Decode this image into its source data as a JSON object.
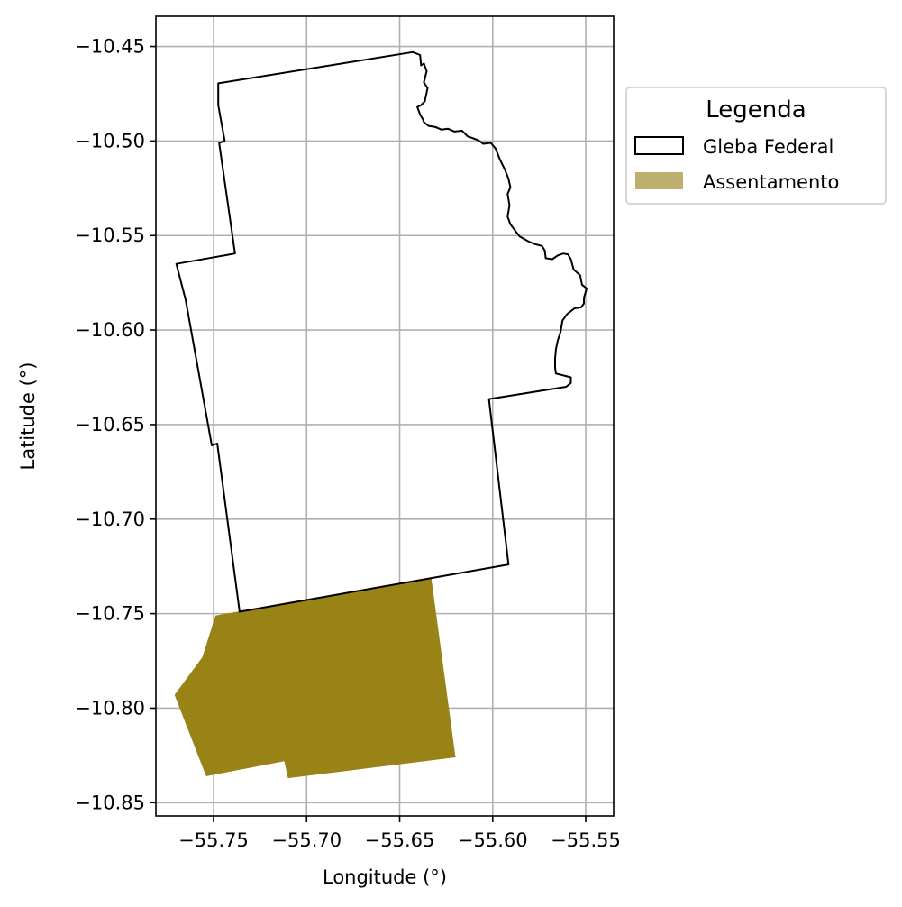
{
  "chart_data": {
    "type": "map",
    "xlabel": "Longitude (°)",
    "ylabel": "Latitude (°)",
    "xlim": [
      -55.781,
      -55.535
    ],
    "ylim": [
      -10.857,
      -10.434
    ],
    "grid": true,
    "x_ticks": [
      {
        "value": -55.75,
        "label": "−55.75"
      },
      {
        "value": -55.7,
        "label": "−55.70"
      },
      {
        "value": -55.65,
        "label": "−55.65"
      },
      {
        "value": -55.6,
        "label": "−55.60"
      },
      {
        "value": -55.55,
        "label": "−55.55"
      }
    ],
    "y_ticks": [
      {
        "value": -10.45,
        "label": "−10.45"
      },
      {
        "value": -10.5,
        "label": "−10.50"
      },
      {
        "value": -10.55,
        "label": "−10.55"
      },
      {
        "value": -10.6,
        "label": "−10.60"
      },
      {
        "value": -10.65,
        "label": "−10.65"
      },
      {
        "value": -10.7,
        "label": "−10.70"
      },
      {
        "value": -10.75,
        "label": "−10.75"
      },
      {
        "value": -10.8,
        "label": "−10.80"
      },
      {
        "value": -10.85,
        "label": "−10.85"
      }
    ],
    "legend": {
      "title": "Legenda",
      "placement": "outside-right",
      "entries": [
        {
          "label": "Gleba Federal",
          "fill": "#ffffff",
          "stroke": "#000000"
        },
        {
          "label": "Assentamento",
          "fill": "#bdb06f",
          "stroke": "none"
        }
      ]
    },
    "layers": [
      {
        "name": "Gleba Federal",
        "fill": "none",
        "stroke": "#000000",
        "coords": [
          [
            -55.7475,
            -10.4695
          ],
          [
            -55.643,
            -10.453
          ],
          [
            -55.639,
            -10.4545
          ],
          [
            -55.6385,
            -10.46
          ],
          [
            -55.637,
            -10.459
          ],
          [
            -55.6355,
            -10.463
          ],
          [
            -55.637,
            -10.469
          ],
          [
            -55.635,
            -10.472
          ],
          [
            -55.6365,
            -10.479
          ],
          [
            -55.6385,
            -10.481
          ],
          [
            -55.6405,
            -10.482
          ],
          [
            -55.639,
            -10.486
          ],
          [
            -55.6375,
            -10.4885
          ],
          [
            -55.637,
            -10.49
          ],
          [
            -55.6345,
            -10.492
          ],
          [
            -55.631,
            -10.4925
          ],
          [
            -55.6275,
            -10.494
          ],
          [
            -55.624,
            -10.4935
          ],
          [
            -55.6205,
            -10.495
          ],
          [
            -55.6165,
            -10.4945
          ],
          [
            -55.6135,
            -10.4975
          ],
          [
            -55.608,
            -10.4995
          ],
          [
            -55.605,
            -10.5015
          ],
          [
            -55.601,
            -10.501
          ],
          [
            -55.5985,
            -10.504
          ],
          [
            -55.596,
            -10.51
          ],
          [
            -55.5935,
            -10.515
          ],
          [
            -55.5915,
            -10.52
          ],
          [
            -55.5905,
            -10.5245
          ],
          [
            -55.592,
            -10.528
          ],
          [
            -55.591,
            -10.534
          ],
          [
            -55.592,
            -10.54
          ],
          [
            -55.5905,
            -10.544
          ],
          [
            -55.5875,
            -10.548
          ],
          [
            -55.5855,
            -10.5505
          ],
          [
            -55.581,
            -10.553
          ],
          [
            -55.5775,
            -10.5545
          ],
          [
            -55.5735,
            -10.5555
          ],
          [
            -55.572,
            -10.558
          ],
          [
            -55.5715,
            -10.562
          ],
          [
            -55.568,
            -10.5625
          ],
          [
            -55.565,
            -10.5605
          ],
          [
            -55.562,
            -10.5595
          ],
          [
            -55.5595,
            -10.56
          ],
          [
            -55.558,
            -10.5625
          ],
          [
            -55.5565,
            -10.568
          ],
          [
            -55.553,
            -10.571
          ],
          [
            -55.552,
            -10.576
          ],
          [
            -55.5495,
            -10.578
          ],
          [
            -55.551,
            -10.583
          ],
          [
            -55.551,
            -10.586
          ],
          [
            -55.5525,
            -10.588
          ],
          [
            -55.556,
            -10.5885
          ],
          [
            -55.56,
            -10.5915
          ],
          [
            -55.5625,
            -10.595
          ],
          [
            -55.5635,
            -10.601
          ],
          [
            -55.565,
            -10.6055
          ],
          [
            -55.566,
            -10.61
          ],
          [
            -55.5665,
            -10.615
          ],
          [
            -55.5665,
            -10.62
          ],
          [
            -55.566,
            -10.623
          ],
          [
            -55.562,
            -10.624
          ],
          [
            -55.558,
            -10.625
          ],
          [
            -55.558,
            -10.628
          ],
          [
            -55.5605,
            -10.63
          ],
          [
            -55.602,
            -10.6365
          ],
          [
            -55.5915,
            -10.724
          ],
          [
            -55.736,
            -10.749
          ],
          [
            -55.748,
            -10.66
          ],
          [
            -55.751,
            -10.661
          ],
          [
            -55.765,
            -10.584
          ],
          [
            -55.77,
            -10.565
          ],
          [
            -55.7385,
            -10.5595
          ],
          [
            -55.747,
            -10.501
          ],
          [
            -55.744,
            -10.5
          ],
          [
            -55.7475,
            -10.481
          ]
        ]
      },
      {
        "name": "Assentamento",
        "fill": "#998316",
        "stroke": "none",
        "coords": [
          [
            -55.749,
            -10.751
          ],
          [
            -55.633,
            -10.731
          ],
          [
            -55.62,
            -10.826
          ],
          [
            -55.71,
            -10.837
          ],
          [
            -55.712,
            -10.828
          ],
          [
            -55.754,
            -10.836
          ],
          [
            -55.771,
            -10.793
          ],
          [
            -55.756,
            -10.773
          ]
        ]
      }
    ]
  }
}
